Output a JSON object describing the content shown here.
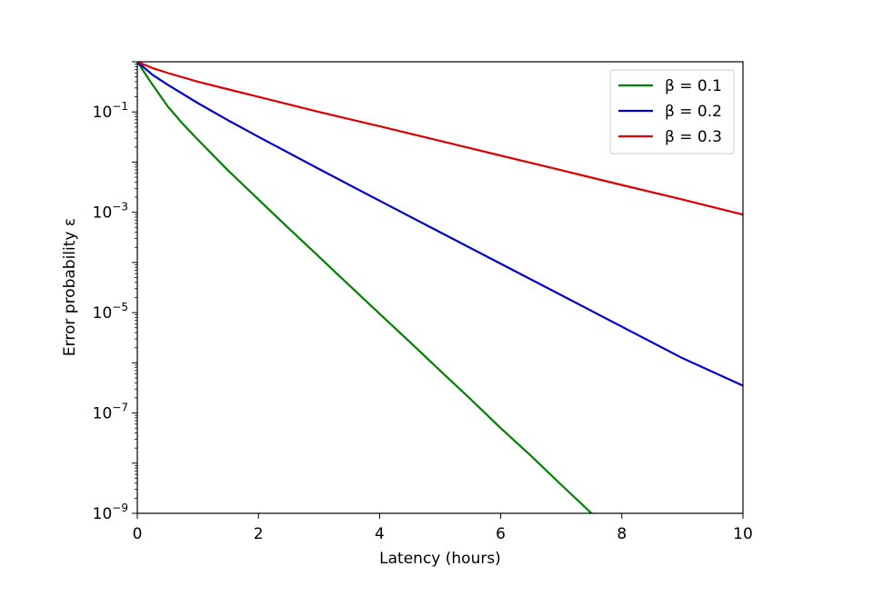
{
  "chart_data": {
    "type": "line",
    "title": "",
    "xlabel": "Latency (hours)",
    "ylabel": "Error probability ε",
    "xlim": [
      0,
      10
    ],
    "ylim": [
      1e-09,
      1
    ],
    "yscale": "log",
    "grid": false,
    "legend_position": "top-right",
    "x_ticks": [
      0,
      2,
      4,
      6,
      8,
      10
    ],
    "x_tick_labels": [
      "0",
      "2",
      "4",
      "6",
      "8",
      "10"
    ],
    "y_ticks": [
      0.1,
      0.001,
      1e-05,
      1e-07,
      1e-09
    ],
    "y_tick_labels": [
      {
        "base": "10",
        "exp": "−1"
      },
      {
        "base": "10",
        "exp": "−3"
      },
      {
        "base": "10",
        "exp": "−5"
      },
      {
        "base": "10",
        "exp": "−7"
      },
      {
        "base": "10",
        "exp": "−9"
      }
    ],
    "series": [
      {
        "name": "β = 0.1",
        "color": "#008000",
        "x": [
          0,
          0.25,
          0.5,
          0.75,
          1,
          1.5,
          2,
          2.5,
          3,
          3.5,
          4,
          4.5,
          5,
          5.5,
          6,
          6.5,
          7,
          7.5,
          7.8
        ],
        "y": [
          1,
          0.35,
          0.13,
          0.058,
          0.028,
          0.0068,
          0.0018,
          0.00048,
          0.00013,
          3.5e-05,
          9.5e-06,
          2.6e-06,
          7e-07,
          1.9e-07,
          5e-08,
          1.4e-08,
          3.7e-09,
          1e-09,
          6.6e-10
        ]
      },
      {
        "name": "β = 0.2",
        "color": "#0000cc",
        "x": [
          0,
          0.25,
          0.5,
          1,
          1.5,
          2,
          3,
          4,
          5,
          6,
          7,
          8,
          9,
          10
        ],
        "y": [
          1,
          0.55,
          0.35,
          0.15,
          0.068,
          0.032,
          0.0073,
          0.0017,
          0.0004,
          9.45e-05,
          2.23e-05,
          5.25e-06,
          1.24e-06,
          3.5e-07
        ]
      },
      {
        "name": "β = 0.3",
        "color": "#dd0000",
        "x": [
          0,
          0.25,
          0.5,
          1,
          2,
          3,
          4,
          5,
          6,
          7,
          8,
          9,
          10
        ],
        "y": [
          1,
          0.75,
          0.6,
          0.4,
          0.2,
          0.1,
          0.052,
          0.0265,
          0.0135,
          0.0069,
          0.0035,
          0.0018,
          0.0009
        ]
      }
    ]
  }
}
